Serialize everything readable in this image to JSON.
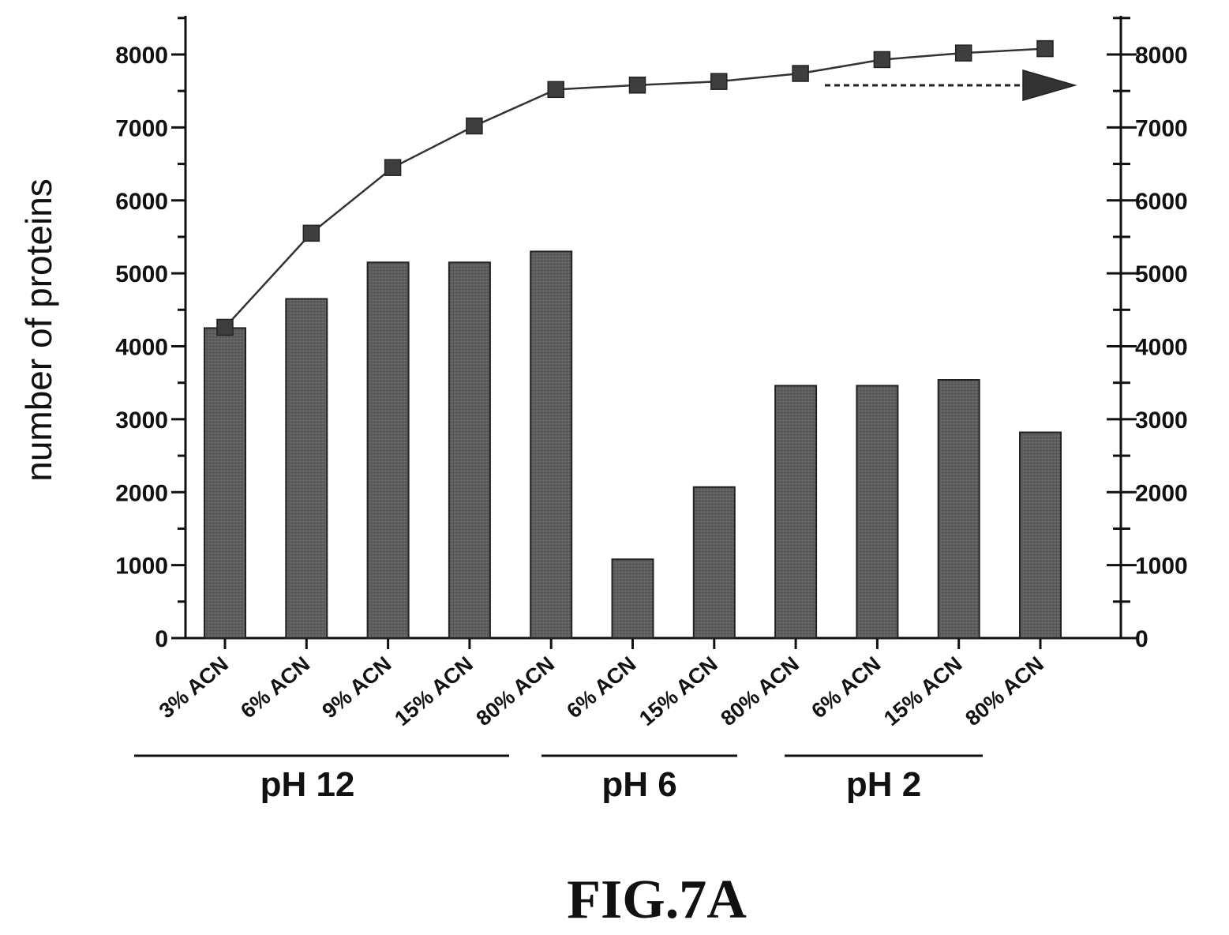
{
  "chart_data": {
    "type": "bar",
    "ylabel": "number of proteins",
    "ylim": [
      0,
      8500
    ],
    "y_ticks": [
      "0",
      "1000",
      "2000",
      "3000",
      "4000",
      "5000",
      "6000",
      "7000",
      "8000"
    ],
    "y2_ticks": [
      "0",
      "1000",
      "2000",
      "3000",
      "4000",
      "5000",
      "6000",
      "7000",
      "8000"
    ],
    "categories": [
      "3% ACN",
      "6% ACN",
      "9% ACN",
      "15% ACN",
      "80% ACN",
      "6% ACN",
      "15% ACN",
      "80% ACN",
      "6% ACN",
      "15% ACN",
      "80% ACN"
    ],
    "groups": [
      {
        "label": "pH 12",
        "first": 0,
        "last": 4
      },
      {
        "label": "pH 6",
        "first": 5,
        "last": 7
      },
      {
        "label": "pH 2",
        "first": 8,
        "last": 10
      }
    ],
    "series": [
      {
        "type": "bar",
        "axis": "left",
        "values": [
          4250,
          4650,
          5150,
          5150,
          5300,
          1080,
          2070,
          3460,
          3460,
          3540,
          2820
        ]
      },
      {
        "type": "line",
        "axis": "right",
        "values": [
          4260,
          5550,
          6450,
          7020,
          7520,
          7580,
          7630,
          7740,
          7930,
          8020,
          8080
        ]
      }
    ],
    "annotation": "dashed arrow pointing to right axis",
    "colors": {
      "bar": "#5e5e5e",
      "marker": "#3e3e3e",
      "line": "#333333"
    },
    "grid": false
  },
  "figure": {
    "label": "FIG.7A"
  }
}
